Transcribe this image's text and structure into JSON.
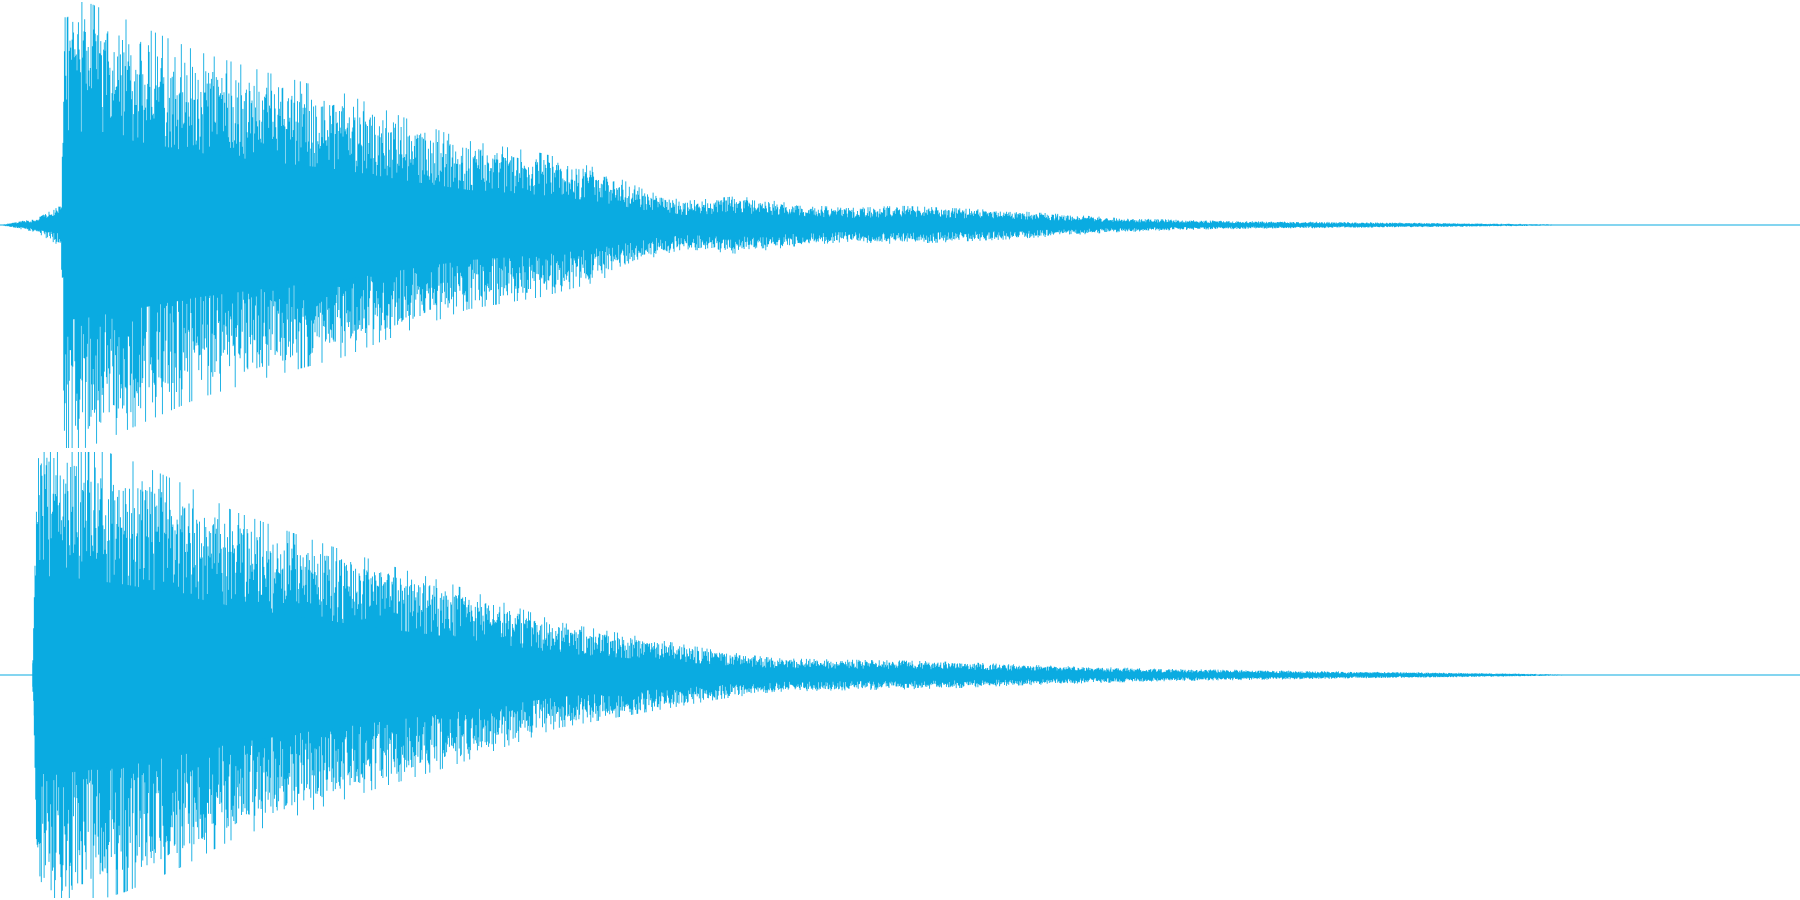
{
  "colors": {
    "background": "#ffffff",
    "waveform": "#0aabe1",
    "axis": "#0aabe1"
  },
  "chart_data": {
    "type": "area",
    "title": "",
    "xlabel": "",
    "ylabel": "",
    "grid": false,
    "legend": "none",
    "ylim": [
      -1,
      1
    ],
    "xlim": [
      0,
      1
    ],
    "series": [
      {
        "channel": 1,
        "onset": 0.034,
        "peak": 1.0,
        "envelope": [
          [
            0.0,
            0.0
          ],
          [
            0.02,
            0.03
          ],
          [
            0.034,
            0.09
          ],
          [
            0.036,
            0.95
          ],
          [
            0.05,
            0.92
          ],
          [
            0.08,
            0.82
          ],
          [
            0.11,
            0.72
          ],
          [
            0.15,
            0.63
          ],
          [
            0.19,
            0.55
          ],
          [
            0.23,
            0.43
          ],
          [
            0.26,
            0.35
          ],
          [
            0.3,
            0.3
          ],
          [
            0.33,
            0.24
          ],
          [
            0.36,
            0.14
          ],
          [
            0.38,
            0.1
          ],
          [
            0.41,
            0.12
          ],
          [
            0.44,
            0.09
          ],
          [
            0.47,
            0.07
          ],
          [
            0.5,
            0.08
          ],
          [
            0.53,
            0.07
          ],
          [
            0.56,
            0.06
          ],
          [
            0.59,
            0.045
          ],
          [
            0.62,
            0.03
          ],
          [
            0.66,
            0.02
          ],
          [
            0.7,
            0.015
          ],
          [
            0.75,
            0.012
          ],
          [
            0.8,
            0.008
          ],
          [
            0.85,
            0.004
          ],
          [
            0.87,
            0.002
          ],
          [
            0.88,
            0.0
          ],
          [
            1.0,
            0.0
          ]
        ]
      },
      {
        "channel": 2,
        "onset": 0.019,
        "peak": 1.0,
        "envelope": [
          [
            0.0,
            0.0
          ],
          [
            0.018,
            0.0
          ],
          [
            0.019,
            0.35
          ],
          [
            0.021,
            0.99
          ],
          [
            0.04,
            0.97
          ],
          [
            0.07,
            0.9
          ],
          [
            0.1,
            0.8
          ],
          [
            0.13,
            0.68
          ],
          [
            0.17,
            0.57
          ],
          [
            0.21,
            0.47
          ],
          [
            0.25,
            0.38
          ],
          [
            0.28,
            0.3
          ],
          [
            0.31,
            0.22
          ],
          [
            0.34,
            0.18
          ],
          [
            0.37,
            0.14
          ],
          [
            0.4,
            0.1
          ],
          [
            0.43,
            0.07
          ],
          [
            0.46,
            0.065
          ],
          [
            0.5,
            0.06
          ],
          [
            0.53,
            0.055
          ],
          [
            0.56,
            0.045
          ],
          [
            0.6,
            0.035
          ],
          [
            0.65,
            0.025
          ],
          [
            0.7,
            0.02
          ],
          [
            0.75,
            0.014
          ],
          [
            0.8,
            0.01
          ],
          [
            0.85,
            0.005
          ],
          [
            0.87,
            0.002
          ],
          [
            0.88,
            0.0
          ],
          [
            1.0,
            0.0
          ]
        ]
      }
    ]
  }
}
